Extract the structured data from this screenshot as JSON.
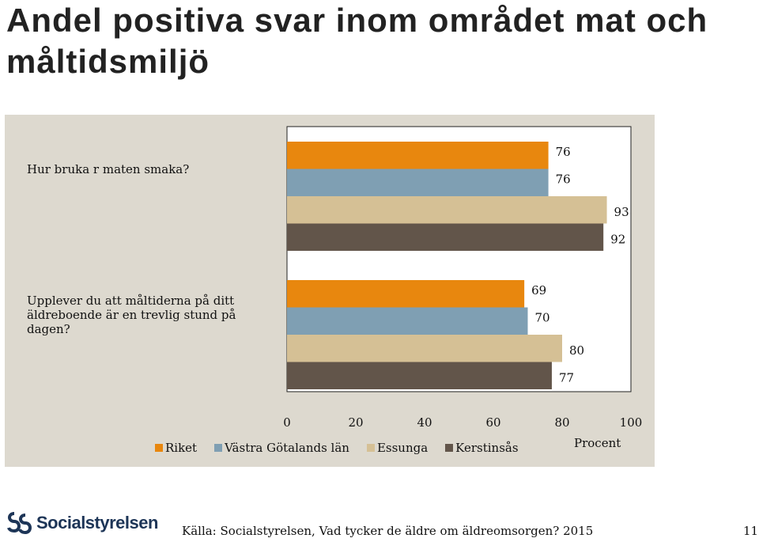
{
  "slide": {
    "title": "Andel positiva svar inom området mat och måltidsmiljö",
    "source": "Källa: Socialstyrelsen, Vad tycker de äldre om äldreomsorgen? 2015",
    "page_number": "11",
    "logo_text": "Socialstyrelsen"
  },
  "chart_data": {
    "type": "bar",
    "orientation": "horizontal",
    "categories": [
      "Hur bruka r maten smaka?",
      "Upplever du att måltiderna på ditt äldreboende är en trevlig stund på dagen?"
    ],
    "series": [
      {
        "name": "Riket",
        "color": "#e8870e",
        "values": [
          76,
          69
        ]
      },
      {
        "name": "Västra Götalands län",
        "color": "#7f9fb3",
        "values": [
          76,
          70
        ]
      },
      {
        "name": "Essunga",
        "color": "#d5c095",
        "values": [
          93,
          80
        ]
      },
      {
        "name": "Kerstinsås",
        "color": "#62554a",
        "values": [
          92,
          77
        ]
      }
    ],
    "xlim": [
      0,
      100
    ],
    "xticks": [
      "0",
      "20",
      "40",
      "60",
      "80",
      "100"
    ],
    "xlabel": "Procent",
    "legend_position": "bottom",
    "grid": false
  }
}
